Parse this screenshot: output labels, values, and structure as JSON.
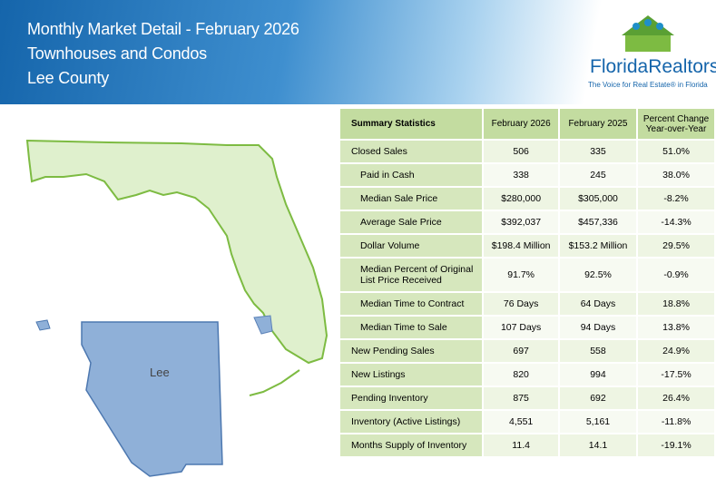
{
  "header": {
    "title": "Monthly Market Detail - February 2026",
    "subtitle": "Townhouses and Condos",
    "region": "Lee County"
  },
  "logo": {
    "name": "FloridaRealtors",
    "mark": "®",
    "tagline": "The Voice for Real Estate® in Florida"
  },
  "map": {
    "label": "Lee"
  },
  "table": {
    "header": [
      "Summary Statistics",
      "February 2026",
      "February 2025",
      "Percent Change Year-over-Year"
    ],
    "rows": [
      {
        "level": 1,
        "cells": [
          "Closed Sales",
          "506",
          "335",
          "51.0%"
        ]
      },
      {
        "level": 2,
        "cells": [
          "Paid in Cash",
          "338",
          "245",
          "38.0%"
        ]
      },
      {
        "level": 2,
        "cells": [
          "Median Sale Price",
          "$280,000",
          "$305,000",
          "-8.2%"
        ]
      },
      {
        "level": 2,
        "cells": [
          "Average Sale Price",
          "$392,037",
          "$457,336",
          "-14.3%"
        ]
      },
      {
        "level": 2,
        "cells": [
          "Dollar Volume",
          "$198.4 Million",
          "$153.2 Million",
          "29.5%"
        ]
      },
      {
        "level": 2,
        "cells": [
          "Median Percent of Original List Price Received",
          "91.7%",
          "92.5%",
          "-0.9%"
        ]
      },
      {
        "level": 2,
        "cells": [
          "Median Time to Contract",
          "76 Days",
          "64 Days",
          "18.8%"
        ]
      },
      {
        "level": 2,
        "cells": [
          "Median Time to Sale",
          "107 Days",
          "94 Days",
          "13.8%"
        ]
      },
      {
        "level": 1,
        "cells": [
          "New Pending Sales",
          "697",
          "558",
          "24.9%"
        ]
      },
      {
        "level": 1,
        "cells": [
          "New Listings",
          "820",
          "994",
          "-17.5%"
        ]
      },
      {
        "level": 1,
        "cells": [
          "Pending Inventory",
          "875",
          "692",
          "26.4%"
        ]
      },
      {
        "level": 1,
        "cells": [
          "Inventory (Active Listings)",
          "4,551",
          "5,161",
          "-11.8%"
        ]
      },
      {
        "level": 1,
        "cells": [
          "Months Supply of Inventory",
          "11.4",
          "14.1",
          "-19.1%"
        ]
      }
    ]
  }
}
